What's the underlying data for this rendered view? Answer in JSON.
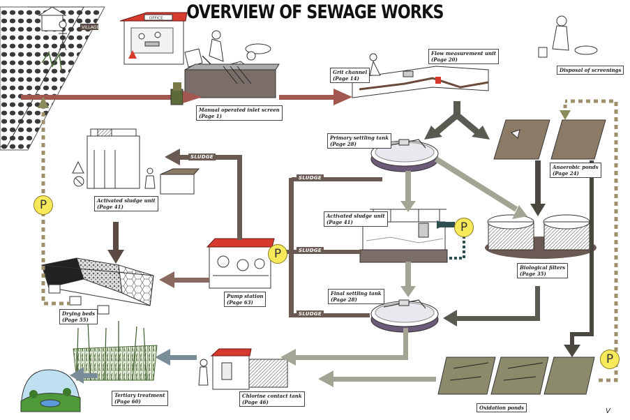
{
  "title": "OVERVIEW OF SEWAGE WORKS",
  "page_number": "V",
  "colors": {
    "sewage": "#a25750",
    "sludge": "#6b5a54",
    "primary_effluent": "#8a8b7c",
    "clarified": "#a4a495",
    "tertiary": "#7a8c97",
    "pond": "#8b8a6a",
    "pump_dashed": "#a0906a",
    "dark_flow": "#4a4640",
    "roof_red": "#d63a2e",
    "p_yellow": "#f6ea5a"
  },
  "village_sign": "VILLAGE",
  "office_sign": "OFFICE",
  "units": {
    "inlet_screen": {
      "name": "Manual operated inlet screen",
      "page": "(Page 1)"
    },
    "grit_channel": {
      "name": "Grit channel",
      "page": "(Page 14)"
    },
    "flow_measurement": {
      "name": "Flow measurement unit",
      "page": "(Page 20)"
    },
    "screenings": {
      "name": "Disposal of screenings"
    },
    "primary_settling": {
      "name": "Primary settling tank",
      "page": "(Page 28)"
    },
    "anaerobic_ponds": {
      "name": "Anaerobic ponds",
      "page": "(Page 24)"
    },
    "activated_sludge_left": {
      "name": "Activated sludge unit",
      "page": "(Page 41)"
    },
    "activated_sludge_center": {
      "name": "Activated sludge unit",
      "page": "(Page 41)"
    },
    "biological_filters": {
      "name": "Biological filters",
      "page": "(Page 35)"
    },
    "pump_station": {
      "name": "Pump station",
      "page": "(Page 63)"
    },
    "drying_beds": {
      "name": "Drying beds",
      "page": "(Page 55)"
    },
    "final_settling": {
      "name": "Final settling tank",
      "page": "(Page 28)"
    },
    "tertiary_treatment": {
      "name": "Tertiary treatment",
      "page": "(Page 60)"
    },
    "chlorine_contact": {
      "name": "Chlorine contact tank",
      "page": "(Page 46)"
    },
    "oxidation_ponds": {
      "name": "Oxidation ponds"
    }
  },
  "sludge_tags": [
    "SLUDGE",
    "SLUDGE",
    "SLUDGE",
    "SLUDGE"
  ],
  "pump_symbols": [
    "P",
    "P",
    "P",
    "P"
  ]
}
